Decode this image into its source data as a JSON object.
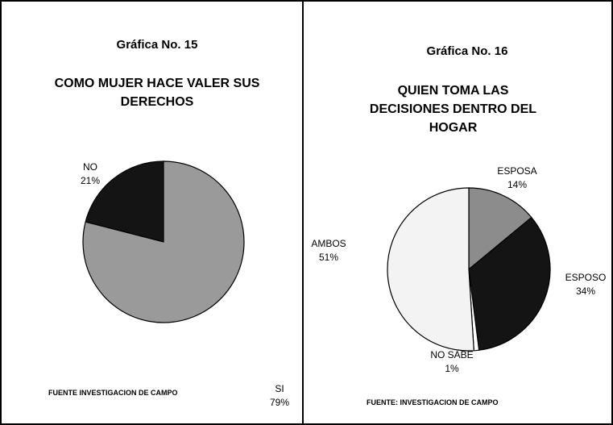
{
  "chart_data": [
    {
      "type": "pie",
      "header": "Gráfica No. 15",
      "title": "COMO MUJER HACE VALER SUS DERECHOS",
      "categories": [
        "NO",
        "SI"
      ],
      "values": [
        21,
        79
      ],
      "value_labels": [
        "21%",
        "79%"
      ],
      "colors": [
        "#141414",
        "#9a9a9a"
      ],
      "source": "FUENTE INVESTIGACION DE CAMPO"
    },
    {
      "type": "pie",
      "header": "Gráfica No. 16",
      "title": "QUIEN TOMA LAS DECISIONES DENTRO DEL HOGAR",
      "categories": [
        "ESPOSA",
        "ESPOSO",
        "NO SABE",
        "AMBOS"
      ],
      "values": [
        14,
        34,
        1,
        51
      ],
      "value_labels": [
        "14%",
        "34%",
        "1%",
        "51%"
      ],
      "colors": [
        "#8c8c8c",
        "#141414",
        "#ffffff",
        "#f3f3f3"
      ],
      "source": "FUENTE: INVESTIGACION DE CAMPO"
    }
  ]
}
